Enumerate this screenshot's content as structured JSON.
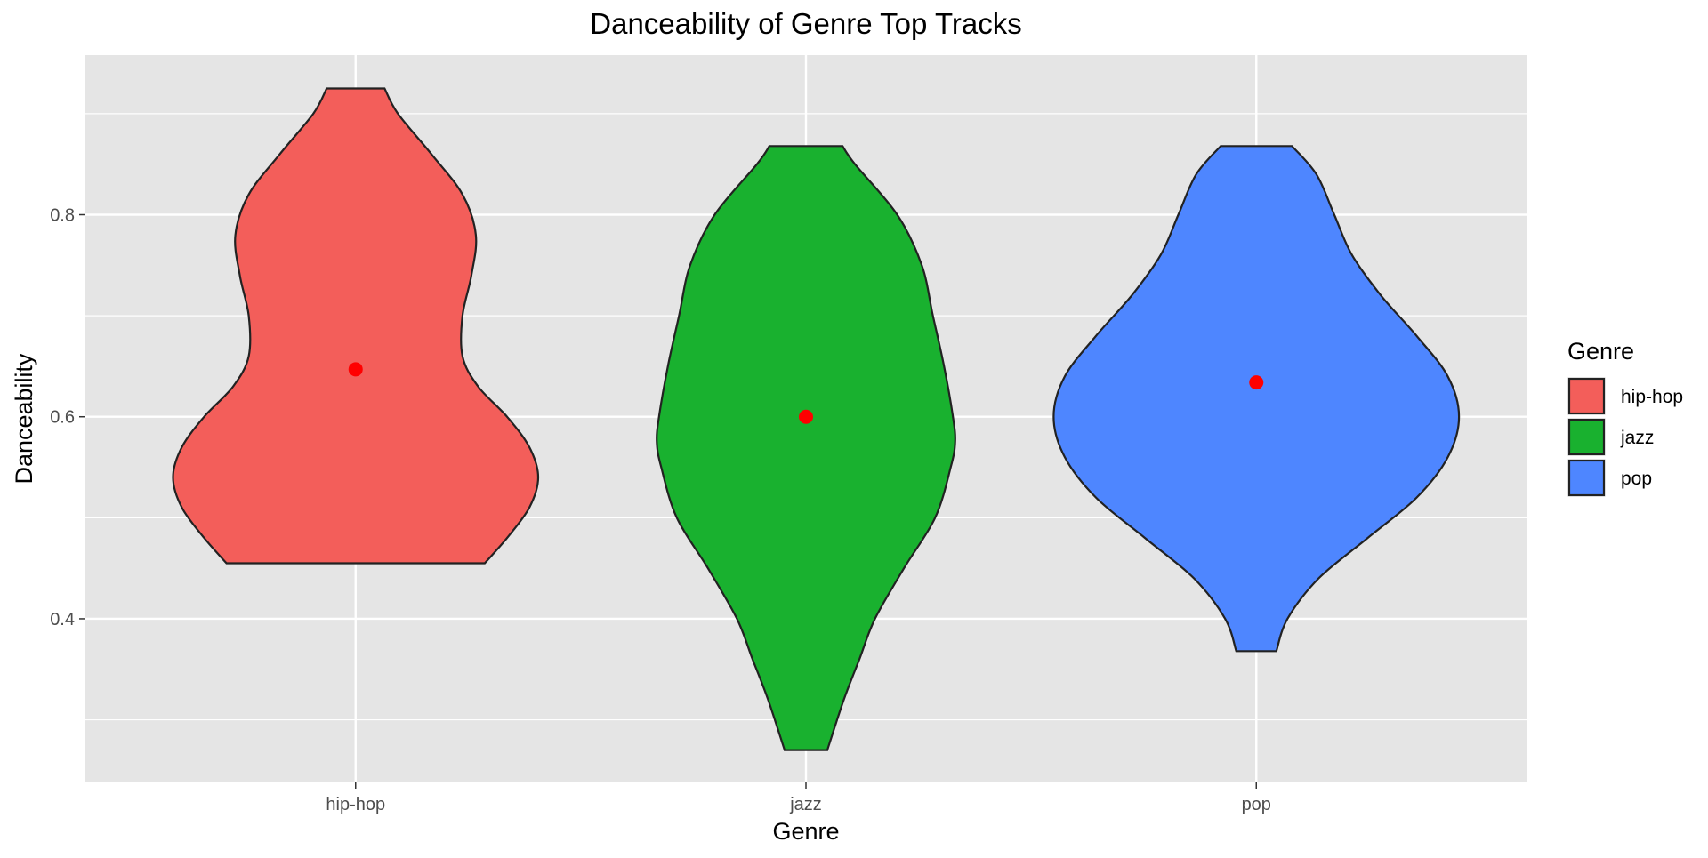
{
  "chart_data": {
    "type": "violin",
    "title": "Danceability of Genre Top Tracks",
    "xlabel": "Genre",
    "ylabel": "Danceability",
    "ylim": [
      0.238,
      0.958
    ],
    "yticks": [
      0.4,
      0.6,
      0.8
    ],
    "grid": true,
    "categories": [
      "hip-hop",
      "jazz",
      "pop"
    ],
    "colors": [
      "#F35E5A",
      "#19B12F",
      "#4E86FF"
    ],
    "point_color": "#FF0000",
    "means": [
      0.647,
      0.6,
      0.634
    ],
    "series": [
      {
        "name": "hip-hop",
        "min": 0.455,
        "max": 0.925,
        "max_half_width": 0.41,
        "density": [
          [
            0.455,
            0.29
          ],
          [
            0.48,
            0.34
          ],
          [
            0.51,
            0.39
          ],
          [
            0.54,
            0.41
          ],
          [
            0.57,
            0.39
          ],
          [
            0.6,
            0.34
          ],
          [
            0.63,
            0.275
          ],
          [
            0.66,
            0.24
          ],
          [
            0.7,
            0.24
          ],
          [
            0.74,
            0.26
          ],
          [
            0.78,
            0.27
          ],
          [
            0.82,
            0.24
          ],
          [
            0.86,
            0.17
          ],
          [
            0.9,
            0.095
          ],
          [
            0.925,
            0.065
          ]
        ]
      },
      {
        "name": "jazz",
        "min": 0.27,
        "max": 0.868,
        "max_half_width": 0.335,
        "density": [
          [
            0.27,
            0.048
          ],
          [
            0.32,
            0.085
          ],
          [
            0.36,
            0.12
          ],
          [
            0.4,
            0.155
          ],
          [
            0.45,
            0.22
          ],
          [
            0.5,
            0.29
          ],
          [
            0.55,
            0.325
          ],
          [
            0.575,
            0.335
          ],
          [
            0.6,
            0.33
          ],
          [
            0.65,
            0.31
          ],
          [
            0.7,
            0.285
          ],
          [
            0.75,
            0.26
          ],
          [
            0.8,
            0.205
          ],
          [
            0.85,
            0.11
          ],
          [
            0.868,
            0.082
          ]
        ]
      },
      {
        "name": "pop",
        "min": 0.368,
        "max": 0.868,
        "max_half_width": 0.455,
        "density": [
          [
            0.368,
            0.045
          ],
          [
            0.4,
            0.07
          ],
          [
            0.44,
            0.14
          ],
          [
            0.48,
            0.25
          ],
          [
            0.52,
            0.36
          ],
          [
            0.56,
            0.43
          ],
          [
            0.6,
            0.455
          ],
          [
            0.64,
            0.43
          ],
          [
            0.68,
            0.36
          ],
          [
            0.72,
            0.28
          ],
          [
            0.76,
            0.215
          ],
          [
            0.8,
            0.175
          ],
          [
            0.84,
            0.135
          ],
          [
            0.868,
            0.08
          ]
        ]
      }
    ],
    "legend": {
      "title": "Genre",
      "position": "right",
      "entries": [
        "hip-hop",
        "jazz",
        "pop"
      ]
    }
  }
}
